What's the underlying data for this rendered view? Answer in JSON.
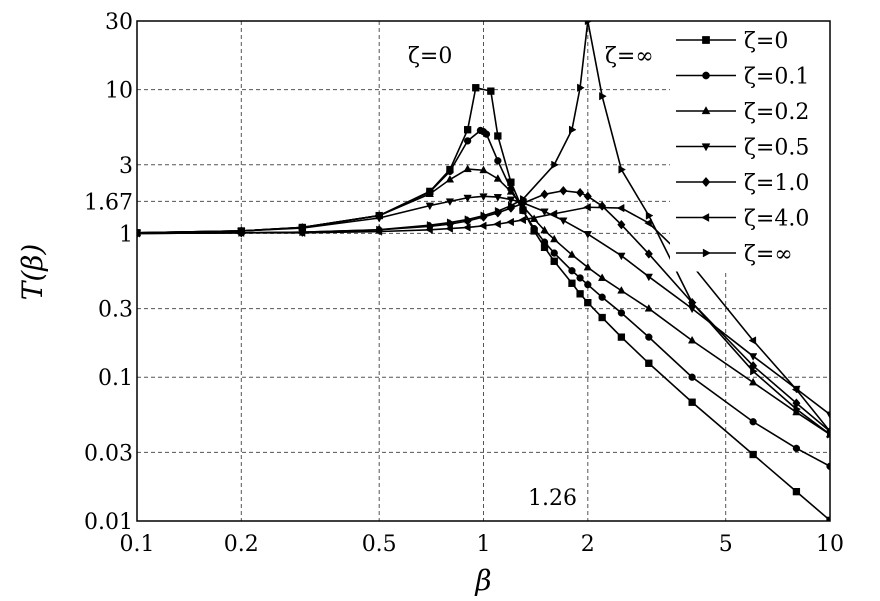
{
  "chart_data": {
    "type": "line",
    "xlabel": "β",
    "ylabel": "T(β)",
    "xscale": "log",
    "yscale": "log",
    "xlim": [
      0.1,
      10
    ],
    "ylim": [
      0.01,
      30
    ],
    "grid": true,
    "legend_position": "top-right",
    "x_ticks": [
      {
        "value": 0.1,
        "label": "0.1"
      },
      {
        "value": 0.2,
        "label": "0.2"
      },
      {
        "value": 0.5,
        "label": "0.5"
      },
      {
        "value": 1,
        "label": "1"
      },
      {
        "value": 2,
        "label": "2"
      },
      {
        "value": 5,
        "label": "5"
      },
      {
        "value": 10,
        "label": "10"
      }
    ],
    "y_ticks": [
      {
        "value": 0.01,
        "label": "0.01"
      },
      {
        "value": 0.03,
        "label": "0.03"
      },
      {
        "value": 0.1,
        "label": "0.1"
      },
      {
        "value": 0.3,
        "label": "0.3"
      },
      {
        "value": 1,
        "label": "1"
      },
      {
        "value": 1.67,
        "label": "1.67"
      },
      {
        "value": 3,
        "label": "3"
      },
      {
        "value": 10,
        "label": "10"
      },
      {
        "value": 30,
        "label": "30"
      }
    ],
    "annotations": [
      {
        "text": "ζ=0",
        "x": 0.88,
        "y": 20
      },
      {
        "text": "ζ=∞",
        "x": 2.2,
        "y": 20
      },
      {
        "text": "1.26",
        "x": 1.26,
        "y": 0.016
      }
    ],
    "series": [
      {
        "name": "ζ=0",
        "marker": "square",
        "x": [
          0.1,
          0.2,
          0.3,
          0.5,
          0.7,
          0.8,
          0.9,
          0.95,
          1.05,
          1.1,
          1.2,
          1.3,
          1.4,
          1.5,
          1.6,
          1.8,
          1.9,
          2.0,
          2.2,
          2.5,
          3,
          4,
          6,
          8,
          10
        ],
        "y": [
          1.01,
          1.04,
          1.1,
          1.33,
          1.96,
          2.78,
          5.26,
          10.3,
          9.76,
          4.76,
          2.27,
          1.45,
          1.04,
          0.8,
          0.64,
          0.45,
          0.38,
          0.33,
          0.26,
          0.19,
          0.125,
          0.067,
          0.029,
          0.016,
          0.0101
        ]
      },
      {
        "name": "ζ=0.1",
        "marker": "circle",
        "x": [
          0.1,
          0.2,
          0.3,
          0.5,
          0.7,
          0.8,
          0.9,
          0.98,
          1.0,
          1.02,
          1.1,
          1.2,
          1.3,
          1.4,
          1.5,
          1.6,
          1.8,
          1.9,
          2.0,
          2.2,
          2.5,
          3,
          4,
          6,
          8,
          10
        ],
        "y": [
          1.01,
          1.04,
          1.1,
          1.33,
          1.94,
          2.7,
          4.4,
          5.2,
          5.1,
          4.9,
          3.2,
          2.03,
          1.44,
          1.08,
          0.87,
          0.73,
          0.55,
          0.49,
          0.44,
          0.36,
          0.28,
          0.19,
          0.1,
          0.049,
          0.032,
          0.024
        ]
      },
      {
        "name": "ζ=0.2",
        "marker": "triangle-up",
        "x": [
          0.1,
          0.2,
          0.3,
          0.5,
          0.7,
          0.8,
          0.9,
          1.0,
          1.1,
          1.2,
          1.3,
          1.4,
          1.5,
          1.6,
          1.8,
          2.0,
          2.2,
          2.5,
          3,
          4,
          6,
          8,
          10
        ],
        "y": [
          1.01,
          1.04,
          1.1,
          1.33,
          1.88,
          2.37,
          2.8,
          2.75,
          2.4,
          1.95,
          1.54,
          1.26,
          1.05,
          0.91,
          0.71,
          0.58,
          0.49,
          0.4,
          0.3,
          0.18,
          0.092,
          0.057,
          0.04
        ]
      },
      {
        "name": "ζ=0.5",
        "marker": "triangle-down",
        "x": [
          0.1,
          0.2,
          0.3,
          0.5,
          0.7,
          0.8,
          0.9,
          1.0,
          1.1,
          1.2,
          1.3,
          1.5,
          1.7,
          2.0,
          2.5,
          3,
          4,
          6,
          8,
          10
        ],
        "y": [
          1.01,
          1.04,
          1.09,
          1.28,
          1.56,
          1.67,
          1.77,
          1.81,
          1.79,
          1.72,
          1.63,
          1.42,
          1.23,
          0.99,
          0.7,
          0.5,
          0.3,
          0.14,
          0.083,
          0.055
        ]
      },
      {
        "name": "ζ=1.0",
        "marker": "diamond",
        "x": [
          0.1,
          0.2,
          0.3,
          0.5,
          0.7,
          0.8,
          0.9,
          1.0,
          1.1,
          1.2,
          1.3,
          1.5,
          1.7,
          1.9,
          2.0,
          2.2,
          2.5,
          3,
          4,
          6,
          8,
          10
        ],
        "y": [
          1.0,
          1.01,
          1.02,
          1.06,
          1.12,
          1.16,
          1.22,
          1.3,
          1.39,
          1.5,
          1.62,
          1.87,
          1.98,
          1.92,
          1.81,
          1.55,
          1.15,
          0.72,
          0.33,
          0.12,
          0.066,
          0.042
        ]
      },
      {
        "name": "ζ=4.0",
        "marker": "triangle-left",
        "x": [
          0.1,
          0.2,
          0.3,
          0.5,
          0.7,
          0.8,
          0.9,
          1.0,
          1.1,
          1.2,
          1.3,
          1.6,
          2.0,
          2.5,
          3,
          4,
          6,
          8,
          10
        ],
        "y": [
          1.0,
          1.01,
          1.01,
          1.03,
          1.06,
          1.08,
          1.1,
          1.13,
          1.16,
          1.2,
          1.24,
          1.37,
          1.52,
          1.5,
          1.18,
          0.6,
          0.18,
          0.082,
          0.042
        ]
      },
      {
        "name": "ζ=∞",
        "marker": "triangle-right",
        "x": [
          0.1,
          0.2,
          0.3,
          0.5,
          0.7,
          0.8,
          0.9,
          1.0,
          1.1,
          1.2,
          1.3,
          1.6,
          1.8,
          1.9,
          2.0,
          2.2,
          2.5,
          3,
          4,
          6,
          8,
          10
        ],
        "y": [
          1.0,
          1.01,
          1.02,
          1.06,
          1.14,
          1.19,
          1.25,
          1.33,
          1.43,
          1.56,
          1.73,
          3.0,
          5.26,
          10.3,
          30,
          9.0,
          2.78,
          1.33,
          0.33,
          0.11,
          0.06,
          0.04
        ]
      }
    ]
  }
}
